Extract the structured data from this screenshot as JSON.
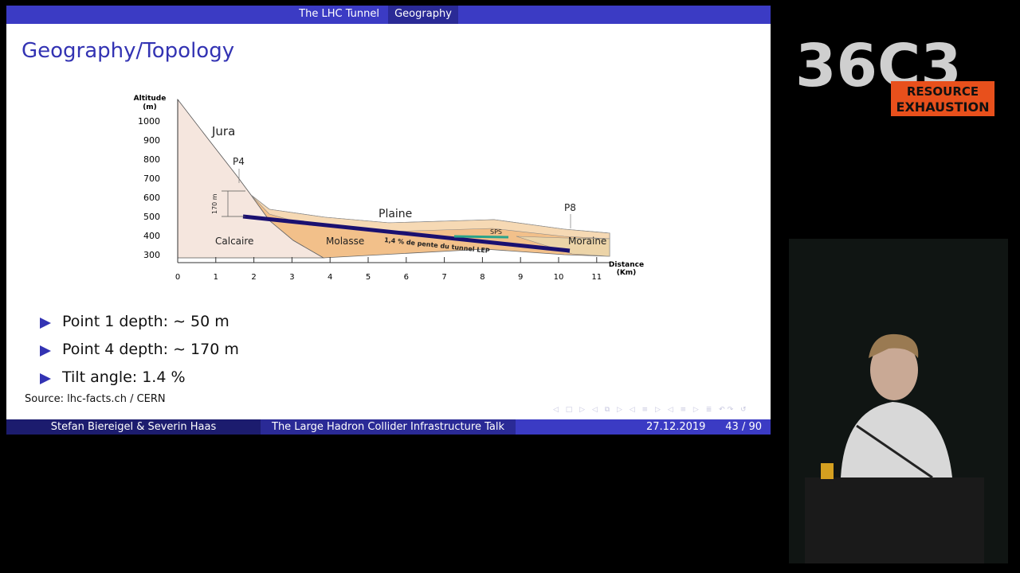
{
  "slide": {
    "header": {
      "section": "The LHC Tunnel",
      "subsection": "Geography"
    },
    "title": "Geography/Topology",
    "diagram": {
      "y_axis_label": [
        "Altitude",
        "(m)"
      ],
      "y_ticks": [
        "1000",
        "900",
        "800",
        "700",
        "600",
        "500",
        "400",
        "300"
      ],
      "x_ticks": [
        "0",
        "1",
        "2",
        "3",
        "4",
        "5",
        "6",
        "7",
        "8",
        "9",
        "10",
        "11"
      ],
      "x_axis_label": [
        "Distance",
        "(Km)"
      ],
      "labels": {
        "jura": "Jura",
        "p4": "P4",
        "p8": "P8",
        "plaine": "Plaine",
        "calcaire": "Calcaire",
        "molasse": "Molasse",
        "moraine": "Moraine",
        "sps": "SPS",
        "slope": "1,4 % de pente du tunnel LEP",
        "depth": "170 m"
      }
    },
    "bullets": [
      "Point 1 depth: ∼ 50 m",
      "Point 4 depth: ∼ 170 m",
      "Tilt angle: 1.4 %"
    ],
    "source": "Source: lhc-facts.ch / CERN",
    "footer": {
      "authors": "Stefan Biereigel & Severin Haas",
      "talk": "The Large Hadron Collider Infrastructure Talk",
      "date": "27.12.2019",
      "page": "43 / 90"
    }
  },
  "logo": {
    "mark": "36C3",
    "lines": [
      "RESOURCE",
      "EXHAUSTION"
    ]
  }
}
